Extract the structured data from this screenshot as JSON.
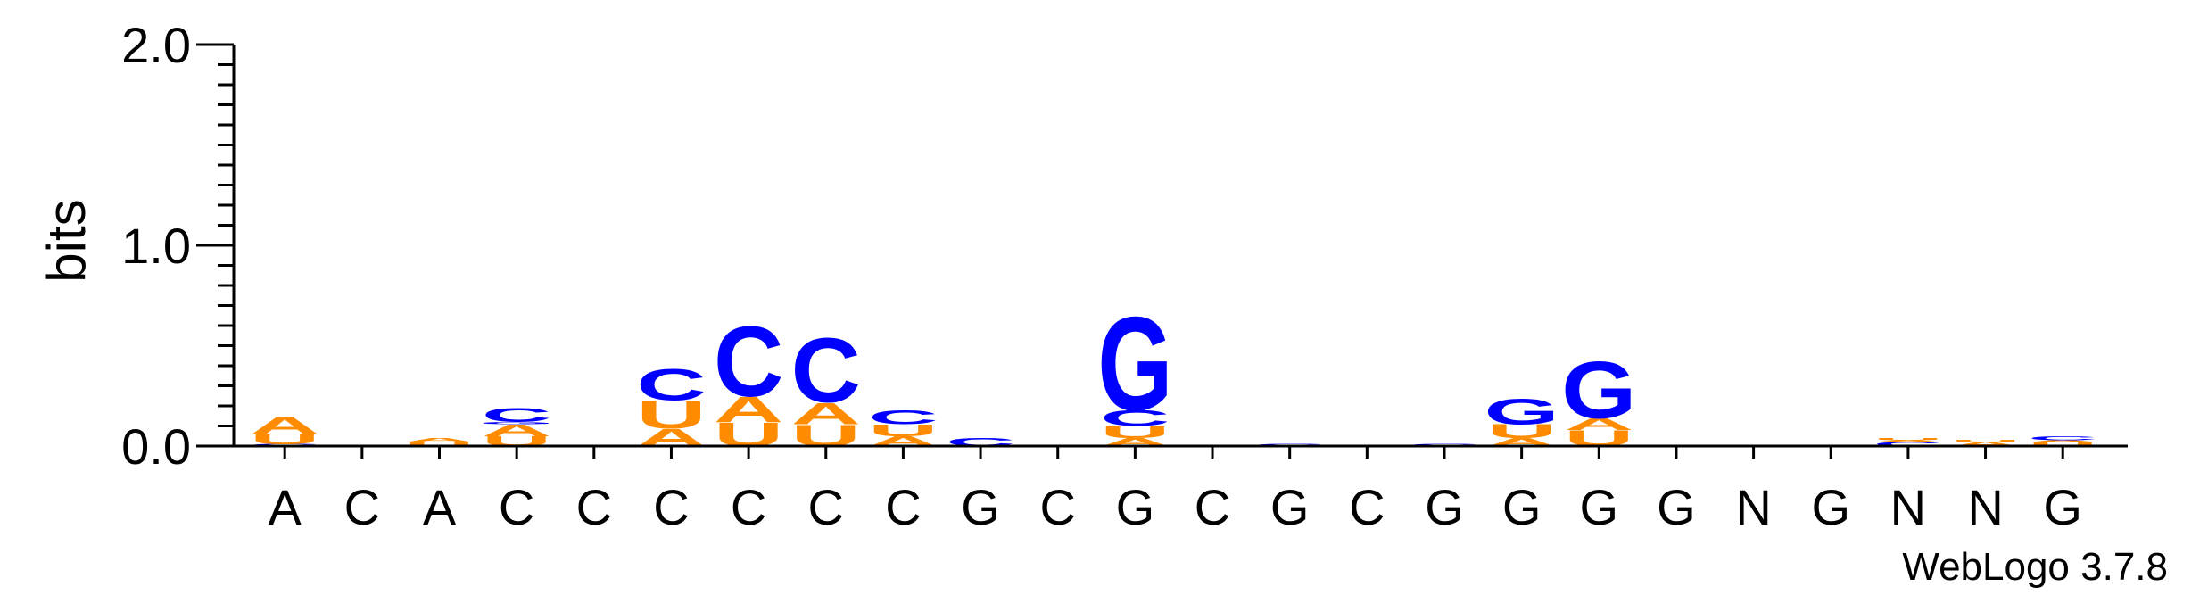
{
  "chart_data": {
    "type": "sequence-logo",
    "ylabel": "bits",
    "ylim": [
      0,
      2.0
    ],
    "yticks": [
      {
        "value": 0,
        "label": "0.0"
      },
      {
        "value": 1,
        "label": "1.0"
      },
      {
        "value": 2,
        "label": "2.0"
      }
    ],
    "consensus": [
      "A",
      "C",
      "A",
      "C",
      "C",
      "C",
      "C",
      "C",
      "C",
      "G",
      "C",
      "G",
      "C",
      "G",
      "C",
      "G",
      "G",
      "G",
      "G",
      "N",
      "G",
      "N",
      "N",
      "G"
    ],
    "colors": {
      "A": "#ff8c00",
      "U": "#ff8c00",
      "C": "#0000ff",
      "G": "#0000ff"
    },
    "stacks": [
      [
        {
          "letter": "C",
          "bits": 0.01
        },
        {
          "letter": "U",
          "bits": 0.05
        },
        {
          "letter": "A",
          "bits": 0.09
        }
      ],
      [],
      [
        {
          "letter": "U",
          "bits": 0.02
        },
        {
          "letter": "A",
          "bits": 0.02
        }
      ],
      [
        {
          "letter": "U",
          "bits": 0.05
        },
        {
          "letter": "A",
          "bits": 0.06
        },
        {
          "letter": "G",
          "bits": 0.01
        },
        {
          "letter": "C",
          "bits": 0.07
        }
      ],
      [],
      [
        {
          "letter": "A",
          "bits": 0.09
        },
        {
          "letter": "U",
          "bits": 0.14
        },
        {
          "letter": "C",
          "bits": 0.16
        }
      ],
      [
        {
          "letter": "U",
          "bits": 0.12
        },
        {
          "letter": "A",
          "bits": 0.13
        },
        {
          "letter": "C",
          "bits": 0.36
        }
      ],
      [
        {
          "letter": "U",
          "bits": 0.11
        },
        {
          "letter": "A",
          "bits": 0.11
        },
        {
          "letter": "C",
          "bits": 0.33
        }
      ],
      [
        {
          "letter": "A",
          "bits": 0.05
        },
        {
          "letter": "U",
          "bits": 0.06
        },
        {
          "letter": "C",
          "bits": 0.07
        }
      ],
      [
        {
          "letter": "C",
          "bits": 0.04
        }
      ],
      [],
      [
        {
          "letter": "A",
          "bits": 0.04
        },
        {
          "letter": "U",
          "bits": 0.06
        },
        {
          "letter": "C",
          "bits": 0.08
        },
        {
          "letter": "G",
          "bits": 0.48
        }
      ],
      [],
      [
        {
          "letter": "C",
          "bits": 0.01
        }
      ],
      [],
      [
        {
          "letter": "C",
          "bits": 0.01
        }
      ],
      [
        {
          "letter": "A",
          "bits": 0.04
        },
        {
          "letter": "U",
          "bits": 0.07
        },
        {
          "letter": "G",
          "bits": 0.13
        }
      ],
      [
        {
          "letter": "U",
          "bits": 0.08
        },
        {
          "letter": "A",
          "bits": 0.06
        },
        {
          "letter": "G",
          "bits": 0.29
        }
      ],
      [],
      [],
      [],
      [
        {
          "letter": "C",
          "bits": 0.02
        },
        {
          "letter": "A",
          "bits": 0.01
        },
        {
          "letter": "U",
          "bits": 0.01
        }
      ],
      [
        {
          "letter": "A",
          "bits": 0.02
        },
        {
          "letter": "U",
          "bits": 0.01
        }
      ],
      [
        {
          "letter": "U",
          "bits": 0.02
        },
        {
          "letter": "A",
          "bits": 0.01
        },
        {
          "letter": "C",
          "bits": 0.02
        }
      ]
    ]
  },
  "credit": "WebLogo 3.7.8"
}
